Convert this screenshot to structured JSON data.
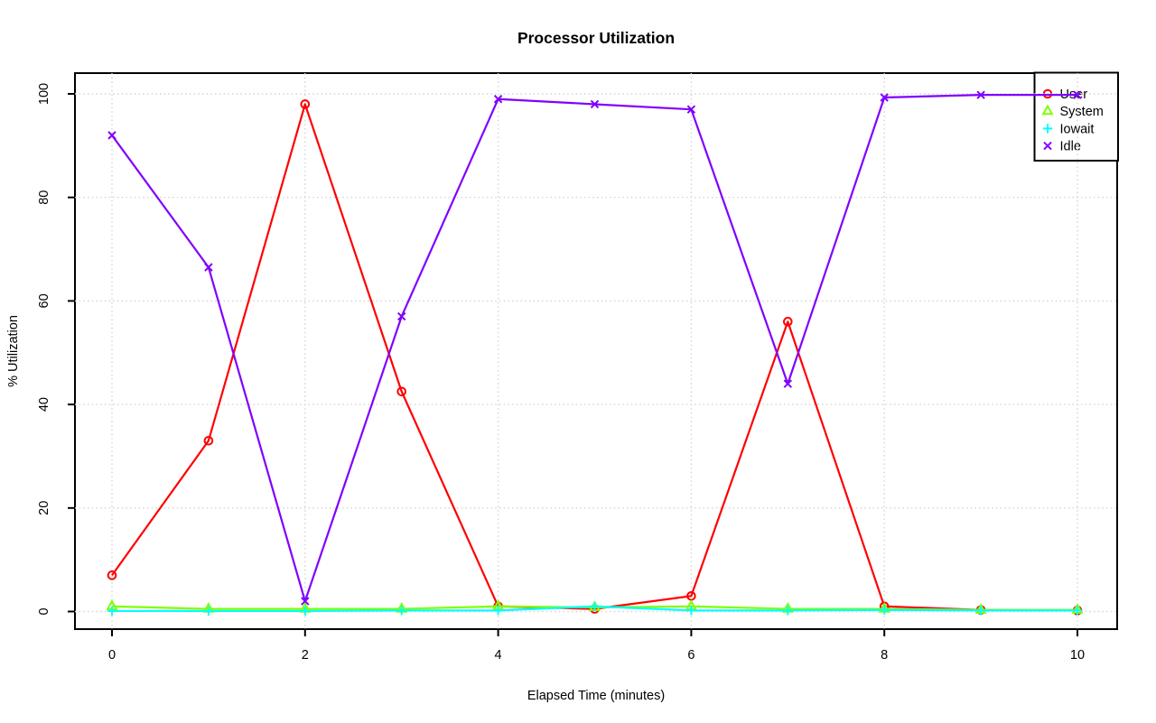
{
  "page": {
    "background": "#ffffff",
    "text_color": "#000000"
  },
  "chart_data": {
    "type": "line",
    "title": "Processor Utilization",
    "xlabel": "Elapsed Time (minutes)",
    "ylabel": "% Utilization",
    "xlim": [
      0,
      10
    ],
    "ylim": [
      0,
      100
    ],
    "x_ticks": [
      0,
      2,
      4,
      6,
      8,
      10
    ],
    "y_ticks": [
      0,
      20,
      40,
      60,
      80,
      100
    ],
    "grid": true,
    "grid_color": "#d3d3d3",
    "axis_color": "#000000",
    "legend_position": "top-right",
    "x": [
      0,
      1,
      2,
      3,
      4,
      5,
      6,
      7,
      8,
      9,
      10
    ],
    "series": [
      {
        "name": "User",
        "color": "#FF0000",
        "marker": "circle",
        "values": [
          7,
          33,
          98,
          42.5,
          1,
          0.5,
          3,
          56,
          1,
          0.3,
          0.2
        ]
      },
      {
        "name": "System",
        "color": "#80FF00",
        "marker": "triangle",
        "values": [
          1,
          0.5,
          0.5,
          0.5,
          1,
          0.8,
          1,
          0.5,
          0.5,
          0.3,
          0.3
        ]
      },
      {
        "name": "Iowait",
        "color": "#00FFFF",
        "marker": "plus",
        "values": [
          0.1,
          0.1,
          0.1,
          0.2,
          0.2,
          1,
          0.2,
          0.2,
          0.3,
          0.2,
          0.2
        ]
      },
      {
        "name": "Idle",
        "color": "#8000FF",
        "marker": "x",
        "values": [
          92,
          66.5,
          2,
          57,
          99,
          98,
          97,
          44,
          99.3,
          99.8,
          99.8
        ]
      }
    ]
  }
}
